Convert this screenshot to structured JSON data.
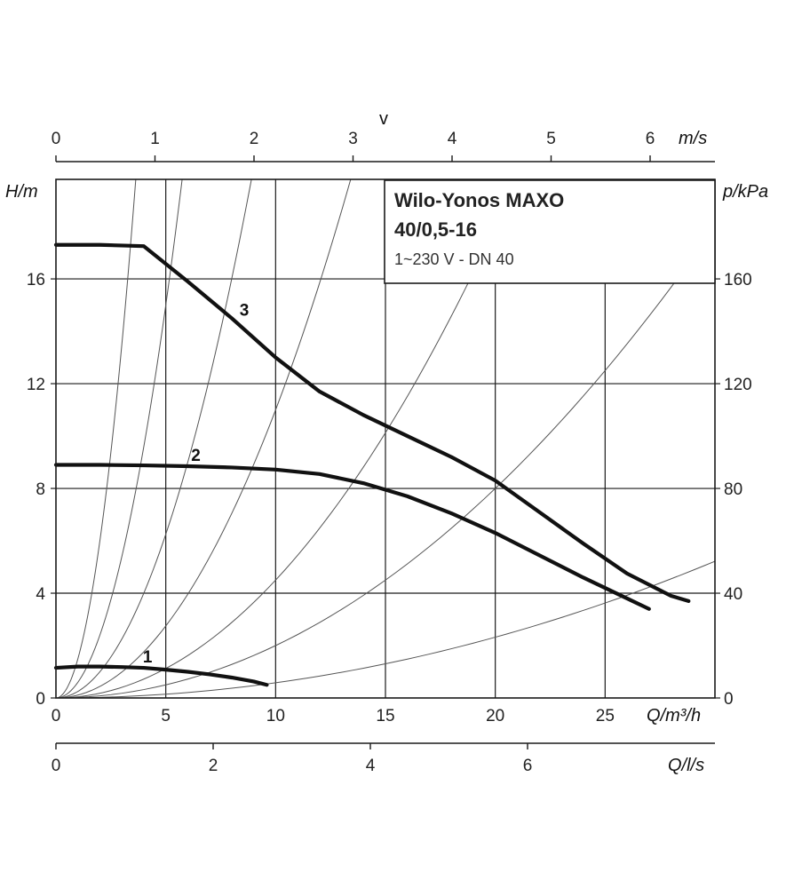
{
  "chart_data": {
    "type": "line",
    "title": "Wilo-Yonos MAXO",
    "subtitle": "40/0,5-16",
    "caption": "1~230 V - DN 40",
    "xlabel": "Q/m³/h",
    "ylabel": "H/m",
    "y2label": "p/kPa",
    "top_axis_title": "v",
    "top_axis_unit": "m/s",
    "bottom2_label": "Q/l/s",
    "xlim": [
      0,
      30
    ],
    "ylim": [
      0,
      19.8
    ],
    "x_ticks": [
      "0",
      "5",
      "10",
      "15",
      "20",
      "25"
    ],
    "y_ticks": [
      "0",
      "4",
      "8",
      "12",
      "16"
    ],
    "y2_ticks": [
      "0",
      "40",
      "80",
      "120",
      "160"
    ],
    "top_ticks": [
      "0",
      "1",
      "2",
      "3",
      "4",
      "5",
      "6"
    ],
    "bottom2_ticks": [
      "0",
      "2",
      "4",
      "6"
    ],
    "grid": true,
    "series": [
      {
        "name": "1",
        "x": [
          0,
          1,
          2,
          3,
          4,
          5,
          6,
          7,
          8,
          9,
          9.6
        ],
        "y": [
          1.15,
          1.2,
          1.2,
          1.18,
          1.15,
          1.08,
          1.0,
          0.9,
          0.78,
          0.63,
          0.5
        ]
      },
      {
        "name": "2",
        "x": [
          0,
          2,
          4,
          6,
          8,
          10,
          12,
          14,
          16,
          18,
          20,
          22,
          24,
          26,
          27
        ],
        "y": [
          8.9,
          8.9,
          8.88,
          8.85,
          8.8,
          8.72,
          8.55,
          8.2,
          7.7,
          7.05,
          6.3,
          5.45,
          4.6,
          3.8,
          3.4
        ]
      },
      {
        "name": "3",
        "x": [
          0,
          2,
          4,
          6,
          8,
          10,
          12,
          14,
          16,
          18,
          20,
          22,
          24,
          26,
          28,
          28.8
        ],
        "y": [
          17.3,
          17.3,
          17.25,
          15.9,
          14.5,
          13.0,
          11.7,
          10.8,
          10.0,
          9.2,
          8.3,
          7.1,
          5.9,
          4.75,
          3.9,
          3.7
        ]
      }
    ],
    "system_curve_k": [
      1.5,
      0.6,
      0.25,
      0.11,
      0.045,
      0.02,
      0.0058
    ]
  }
}
